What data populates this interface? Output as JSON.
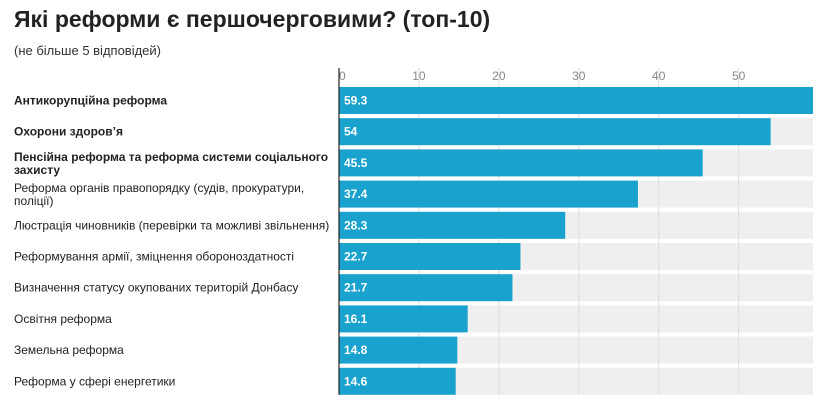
{
  "chart_data": {
    "type": "bar",
    "orientation": "horizontal",
    "title": "Які реформи є першочерговими? (топ-10)",
    "subtitle": "(не більше 5 відповідей)",
    "xlabel": "",
    "ylabel": "",
    "xlim": [
      0,
      59.3
    ],
    "ticks": [
      0,
      10,
      20,
      30,
      40,
      50
    ],
    "grid": true,
    "colors": {
      "bar": "#1aa2cf",
      "track": "#efeff0",
      "grid": "#dddddd",
      "axis": "#222222"
    },
    "categories": [
      [
        "Антикорупційна реформа"
      ],
      [
        "Охорони здоров’я"
      ],
      [
        "Пенсійна реформа та реформа системи соціального",
        "захисту"
      ],
      [
        "Реформа органів правопорядку (судів, прокуратури,",
        "поліції)"
      ],
      [
        "Люстрація чиновників (перевірки та можливі звільнення)"
      ],
      [
        "Реформування армії, зміцнення обороноздатності"
      ],
      [
        "Визначення статусу окупованих територій Донбасу"
      ],
      [
        "Освітня реформа"
      ],
      [
        "Земельна реформа"
      ],
      [
        "Реформа у сфері енергетики"
      ]
    ],
    "emphasized": [
      true,
      true,
      true,
      false,
      false,
      false,
      false,
      false,
      false,
      false
    ],
    "values": [
      59.3,
      54,
      45.5,
      37.4,
      28.3,
      22.7,
      21.7,
      16.1,
      14.8,
      14.6
    ]
  }
}
